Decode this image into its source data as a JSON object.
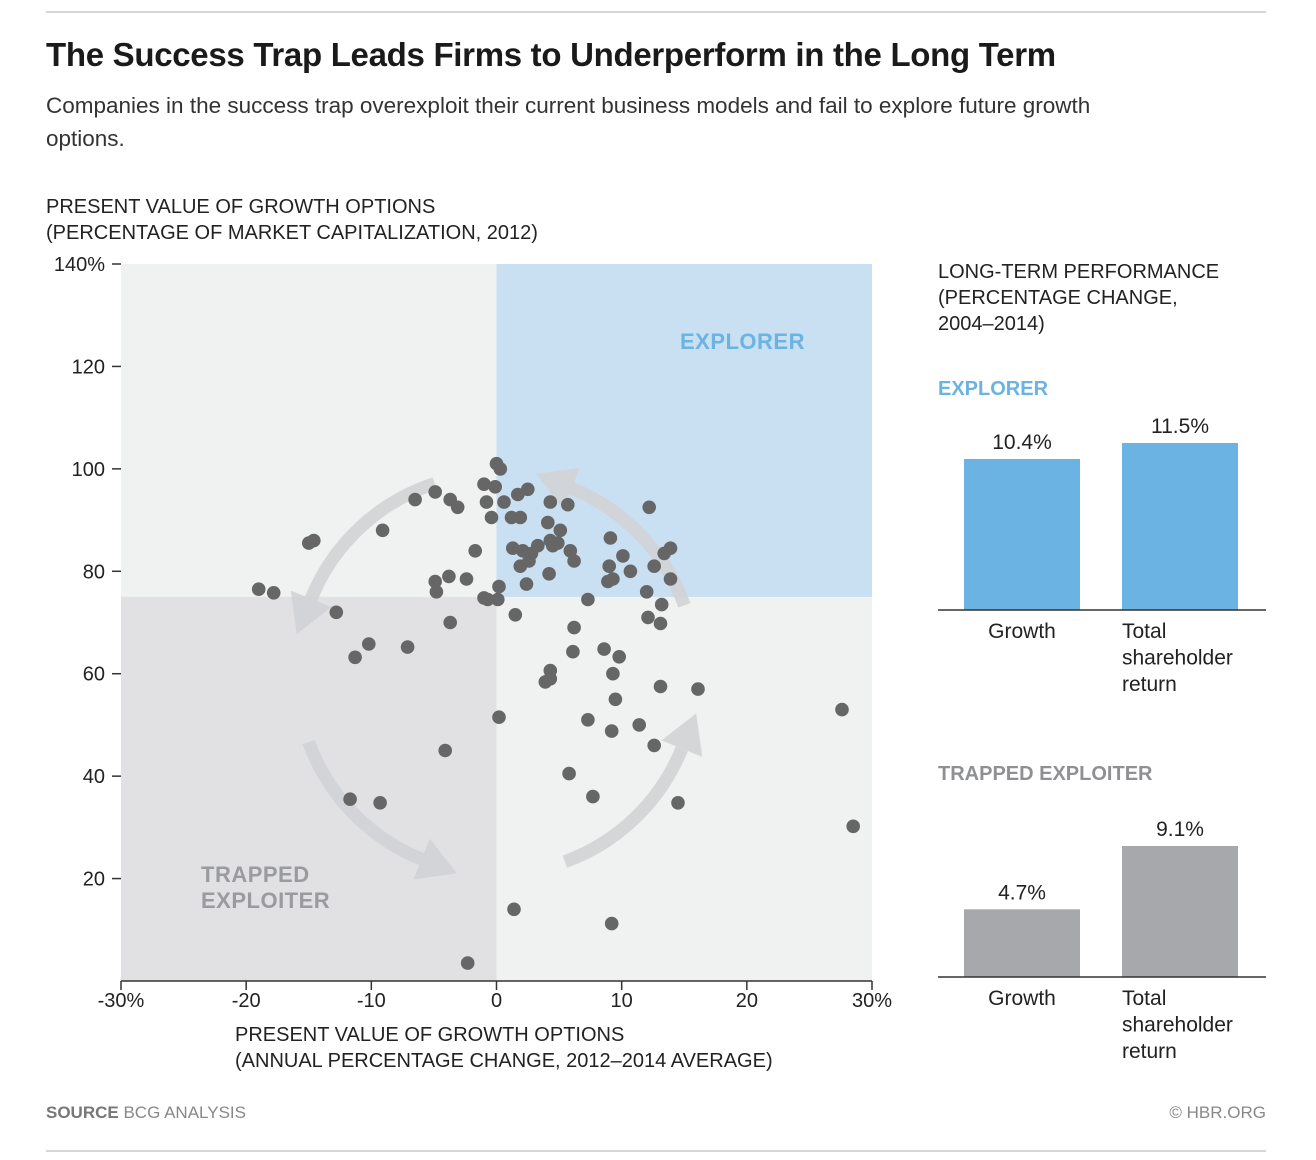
{
  "header": {
    "title": "The Success Trap Leads Firms to Underperform in the Long Term",
    "subtitle": "Companies in the success trap overexploit their current business models and fail to explore future growth options."
  },
  "footer": {
    "source_label": "SOURCE",
    "source_text": "BCG ANALYSIS",
    "credit": "© HBR.ORG"
  },
  "colors": {
    "explorer": "#6bb3e3",
    "explorer_zone": "#c9dff2",
    "trapped_zone": "#e1e1e3",
    "neutral_zone": "#f0f1f1",
    "trapped_bar": "#a7a8ab",
    "dot": "#666667",
    "arrow": "#d2d3d5"
  },
  "chart_data": [
    {
      "type": "scatter",
      "ylabel_lines": [
        "PRESENT VALUE OF GROWTH OPTIONS",
        "(PERCENTAGE OF MARKET CAPITALIZATION, 2012)"
      ],
      "xlabel_lines": [
        "PRESENT VALUE OF GROWTH OPTIONS",
        "(ANNUAL PERCENTAGE CHANGE, 2012–2014 AVERAGE)"
      ],
      "xlim": [
        -30,
        30
      ],
      "ylim": [
        0,
        140
      ],
      "x_ticks": [
        -30,
        -20,
        -10,
        0,
        10,
        20,
        30
      ],
      "x_tick_labels": [
        "-30%",
        "-20",
        "-10",
        "0",
        "10",
        "20",
        "30%"
      ],
      "y_ticks": [
        20,
        40,
        60,
        80,
        100,
        120,
        140
      ],
      "y_tick_labels": [
        "20",
        "40",
        "60",
        "80",
        "100",
        "120",
        "140%"
      ],
      "quadrant_split": {
        "x": 0,
        "y": 75
      },
      "quadrant_labels": {
        "explorer": "EXPLORER",
        "trapped": [
          "TRAPPED",
          "EXPLOITER"
        ]
      },
      "points": [
        [
          0,
          101
        ],
        [
          0.3,
          100
        ],
        [
          -1,
          97
        ],
        [
          -0.1,
          96.5
        ],
        [
          2.5,
          96
        ],
        [
          1.7,
          95
        ],
        [
          -4.9,
          95.5
        ],
        [
          -3.7,
          94
        ],
        [
          -6.5,
          94
        ],
        [
          -0.8,
          93.5
        ],
        [
          0.6,
          93.5
        ],
        [
          4.3,
          93.5
        ],
        [
          5.7,
          93
        ],
        [
          12.2,
          92.5
        ],
        [
          -3.1,
          92.5
        ],
        [
          -0.4,
          90.5
        ],
        [
          1.2,
          90.5
        ],
        [
          1.9,
          90.5
        ],
        [
          4.1,
          89.5
        ],
        [
          5.1,
          88
        ],
        [
          -9.1,
          88
        ],
        [
          9.1,
          86.5
        ],
        [
          4.3,
          86
        ],
        [
          4.9,
          85.5
        ],
        [
          3.3,
          85
        ],
        [
          4.5,
          85
        ],
        [
          -15,
          85.5
        ],
        [
          -14.6,
          86
        ],
        [
          1.3,
          84.5
        ],
        [
          2.1,
          84
        ],
        [
          5.9,
          84
        ],
        [
          2.8,
          83.5
        ],
        [
          -1.7,
          84
        ],
        [
          13.9,
          84.5
        ],
        [
          13.4,
          83.5
        ],
        [
          10.1,
          83
        ],
        [
          2.6,
          82
        ],
        [
          6.2,
          82
        ],
        [
          9,
          81
        ],
        [
          1.9,
          81
        ],
        [
          12.6,
          81
        ],
        [
          10.7,
          80
        ],
        [
          4.2,
          79.5
        ],
        [
          -3.8,
          79
        ],
        [
          -2.4,
          78.5
        ],
        [
          -4.9,
          78
        ],
        [
          9.3,
          78.5
        ],
        [
          8.9,
          78
        ],
        [
          13.9,
          78.5
        ],
        [
          0.2,
          77
        ],
        [
          2.4,
          77.5
        ],
        [
          -4.8,
          76
        ],
        [
          12,
          76
        ],
        [
          -19,
          76.5
        ],
        [
          -17.8,
          75.8
        ],
        [
          0.1,
          74.5
        ],
        [
          -0.7,
          74.5
        ],
        [
          -1,
          74.8
        ],
        [
          7.3,
          74.5
        ],
        [
          13.2,
          73.5
        ],
        [
          -12.8,
          72
        ],
        [
          1.5,
          71.5
        ],
        [
          12.1,
          71
        ],
        [
          13.1,
          69.8
        ],
        [
          -3.7,
          70
        ],
        [
          6.2,
          69
        ],
        [
          -10.2,
          65.8
        ],
        [
          -7.1,
          65.2
        ],
        [
          8.6,
          64.8
        ],
        [
          6.1,
          64.3
        ],
        [
          9.8,
          63.3
        ],
        [
          -11.3,
          63.2
        ],
        [
          4.3,
          60.6
        ],
        [
          9.3,
          60
        ],
        [
          3.9,
          58.4
        ],
        [
          4.3,
          59
        ],
        [
          13.1,
          57.5
        ],
        [
          16.1,
          57
        ],
        [
          9.5,
          55
        ],
        [
          27.6,
          53
        ],
        [
          0.2,
          51.5
        ],
        [
          7.3,
          51
        ],
        [
          11.4,
          50
        ],
        [
          9.2,
          48.8
        ],
        [
          12.6,
          46
        ],
        [
          -4.1,
          45
        ],
        [
          5.8,
          40.5
        ],
        [
          7.7,
          36
        ],
        [
          -11.7,
          35.5
        ],
        [
          -9.3,
          34.8
        ],
        [
          14.5,
          34.8
        ],
        [
          28.5,
          30.2
        ],
        [
          1.4,
          14
        ],
        [
          9.2,
          11.2
        ],
        [
          -2.3,
          3.5
        ]
      ]
    },
    {
      "type": "bar",
      "panel_title_lines": [
        "LONG-TERM PERFORMANCE",
        "(PERCENTAGE CHANGE,",
        "2004–2014)"
      ],
      "group_label": "EXPLORER",
      "categories": [
        [
          "Growth"
        ],
        [
          "Total",
          "shareholder",
          "return"
        ]
      ],
      "values": [
        10.4,
        11.5
      ],
      "value_labels": [
        "10.4%",
        "11.5%"
      ],
      "ylim": [
        0,
        11.5
      ]
    },
    {
      "type": "bar",
      "group_label": "TRAPPED EXPLOITER",
      "categories": [
        [
          "Growth"
        ],
        [
          "Total",
          "shareholder",
          "return"
        ]
      ],
      "values": [
        4.7,
        9.1
      ],
      "value_labels": [
        "4.7%",
        "9.1%"
      ],
      "ylim": [
        0,
        9.1
      ]
    }
  ]
}
